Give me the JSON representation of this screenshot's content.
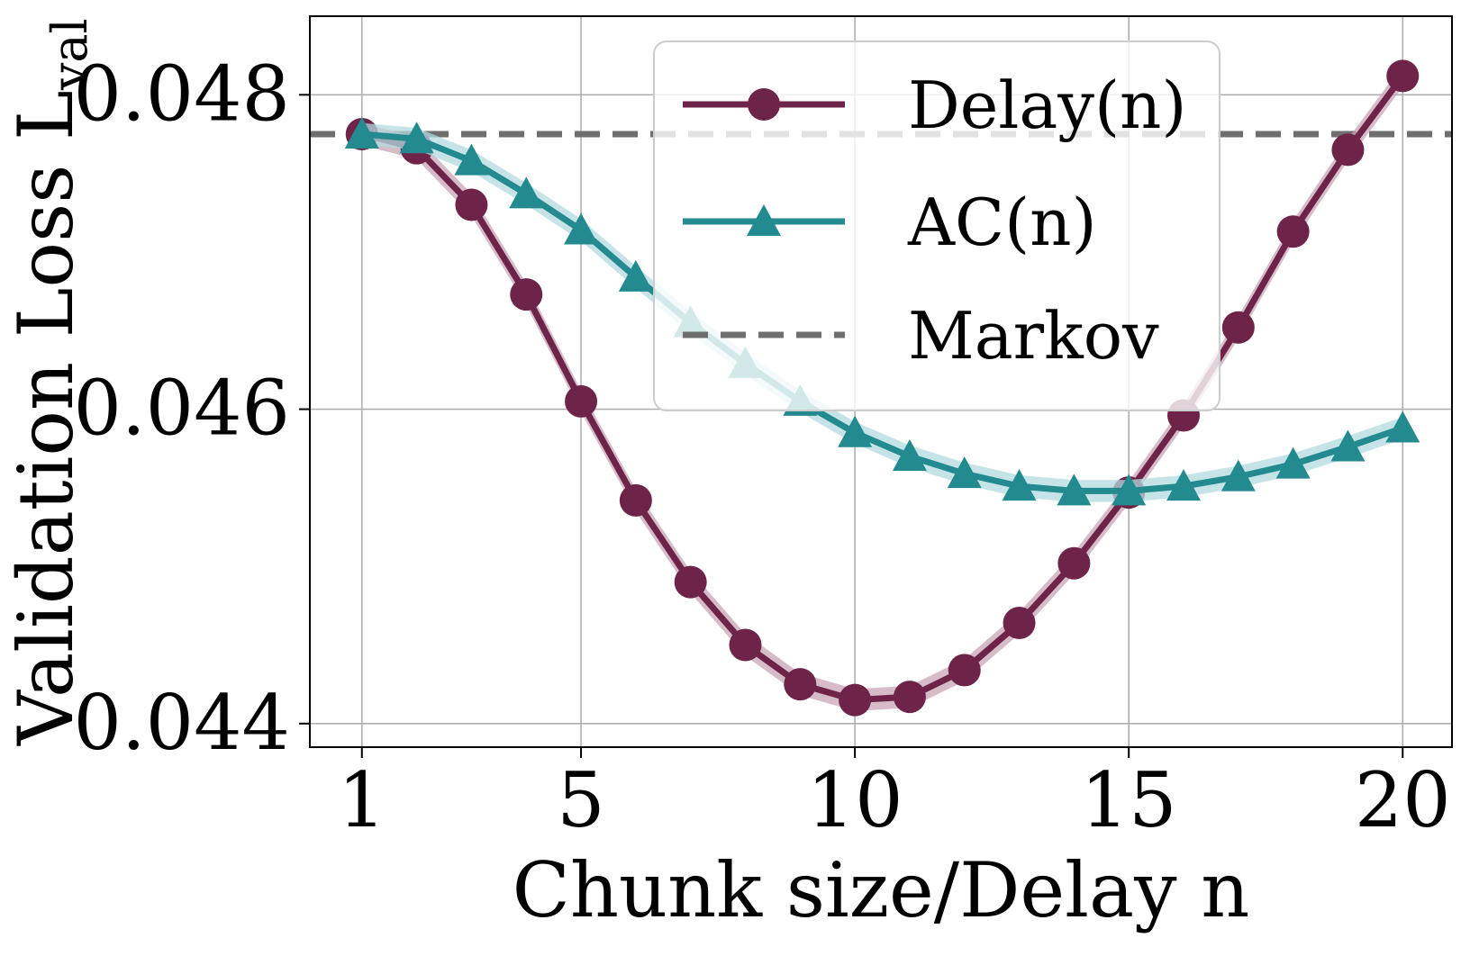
{
  "chart_data": {
    "type": "line",
    "xlabel": "Chunk size/Delay n",
    "ylabel": "Validation Loss L",
    "ylabel_sub": "val",
    "xlim": [
      0.05,
      20.9
    ],
    "ylim": [
      0.04385,
      0.0485
    ],
    "xticks": [
      1,
      5,
      10,
      15,
      20
    ],
    "xtick_labels": [
      "1",
      "5",
      "10",
      "15",
      "20"
    ],
    "yticks": [
      0.044,
      0.046,
      0.048
    ],
    "ytick_labels": [
      "0.044",
      "0.046",
      "0.048"
    ],
    "grid": true,
    "legend_position": "top-right",
    "series": [
      {
        "name": "Delay(n)",
        "marker": "circle",
        "color": "#6d2448",
        "band_color": "#c8a4b6",
        "x": [
          1,
          2,
          3,
          4,
          5,
          6,
          7,
          8,
          9,
          10,
          11,
          12,
          13,
          14,
          15,
          16,
          17,
          18,
          19,
          20
        ],
        "y": [
          0.04775,
          0.04766,
          0.0473,
          0.04673,
          0.04605,
          0.04542,
          0.0449,
          0.0445,
          0.04425,
          0.04415,
          0.04417,
          0.04434,
          0.04464,
          0.04502,
          0.04547,
          0.04596,
          0.04652,
          0.04713,
          0.04765,
          0.04812
        ]
      },
      {
        "name": "AC(n)",
        "marker": "triangle",
        "color": "#238b8f",
        "band_color": "#b3dbe0",
        "x": [
          1,
          2,
          3,
          4,
          5,
          6,
          7,
          8,
          9,
          10,
          11,
          12,
          13,
          14,
          15,
          16,
          17,
          18,
          19,
          20
        ],
        "y": [
          0.04775,
          0.04772,
          0.04758,
          0.04737,
          0.04714,
          0.04684,
          0.04655,
          0.04629,
          0.04605,
          0.04585,
          0.0457,
          0.04559,
          0.04551,
          0.04548,
          0.04548,
          0.04551,
          0.04557,
          0.04565,
          0.04576,
          0.04588
        ]
      },
      {
        "name": "Markov",
        "style": "dashed",
        "color": "#6e6e6e",
        "y_constant": 0.04775
      }
    ]
  }
}
